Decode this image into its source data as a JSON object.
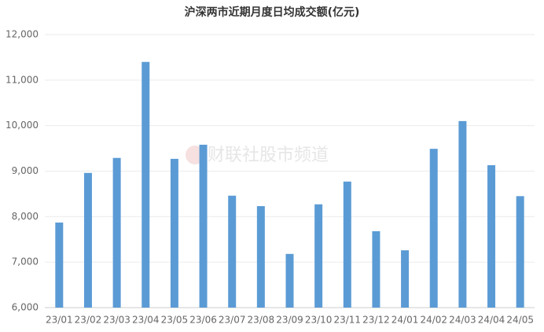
{
  "chart_data": {
    "type": "bar",
    "title": "沪深两市近期月度日均成交额(亿元)",
    "watermark": "财联社股市频道",
    "categories": [
      "23/01",
      "23/02",
      "23/03",
      "23/04",
      "23/05",
      "23/06",
      "23/07",
      "23/08",
      "23/09",
      "23/10",
      "23/11",
      "23/12",
      "24/01",
      "24/02",
      "24/03",
      "24/04",
      "24/05"
    ],
    "values": [
      7870,
      8960,
      9290,
      11400,
      9270,
      9580,
      8460,
      8230,
      7180,
      8270,
      8770,
      7680,
      7260,
      9490,
      10100,
      9130,
      8450
    ],
    "color": "#5b9bd5",
    "ylim": [
      6000,
      12000
    ],
    "yticks": [
      {
        "value": 6000,
        "label": "6,000"
      },
      {
        "value": 7000,
        "label": "7,000"
      },
      {
        "value": 8000,
        "label": "8,000"
      },
      {
        "value": 9000,
        "label": "9,000"
      },
      {
        "value": 10000,
        "label": "10,000"
      },
      {
        "value": 11000,
        "label": "11,000"
      },
      {
        "value": 12000,
        "label": "12,000"
      }
    ],
    "grid": true
  }
}
